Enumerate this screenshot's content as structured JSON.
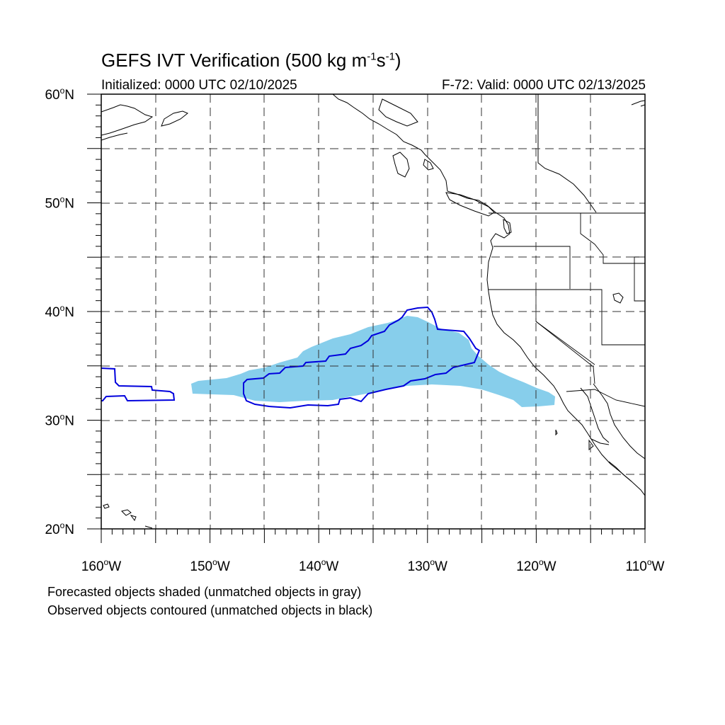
{
  "title": {
    "text": "GEFS IVT Verification (500 kg m",
    "sup1": "-1",
    "mid": "s",
    "sup2": "-1",
    "end": ")"
  },
  "init_label": "Initialized: 0000 UTC 02/10/2025",
  "valid_label": "F-72: Valid: 0000 UTC 02/13/2025",
  "notes": [
    "Forecasted objects shaded (unmatched objects in gray)",
    "Observed objects contoured (unmatched objects in black)"
  ],
  "lat_labels": [
    {
      "value": 60,
      "text": "60",
      "hemi": "N"
    },
    {
      "value": 50,
      "text": "50",
      "hemi": "N"
    },
    {
      "value": 40,
      "text": "40",
      "hemi": "N"
    },
    {
      "value": 30,
      "text": "30",
      "hemi": "N"
    },
    {
      "value": 20,
      "text": "20",
      "hemi": "N"
    }
  ],
  "lon_labels": [
    {
      "value": -160,
      "text": "160",
      "hemi": "W"
    },
    {
      "value": -150,
      "text": "150",
      "hemi": "W"
    },
    {
      "value": -140,
      "text": "140",
      "hemi": "W"
    },
    {
      "value": -130,
      "text": "130",
      "hemi": "W"
    },
    {
      "value": -120,
      "text": "120",
      "hemi": "W"
    },
    {
      "value": -110,
      "text": "110",
      "hemi": "W"
    }
  ],
  "colors": {
    "forecast_fill": "#87ceeb",
    "observed_contour": "#0000dd",
    "coastline": "#000000",
    "grid": "#333333"
  },
  "map_extent": {
    "lon_min": -160,
    "lon_max": -110,
    "lat_min": 20,
    "lat_max": 60,
    "grid_step": 5
  }
}
